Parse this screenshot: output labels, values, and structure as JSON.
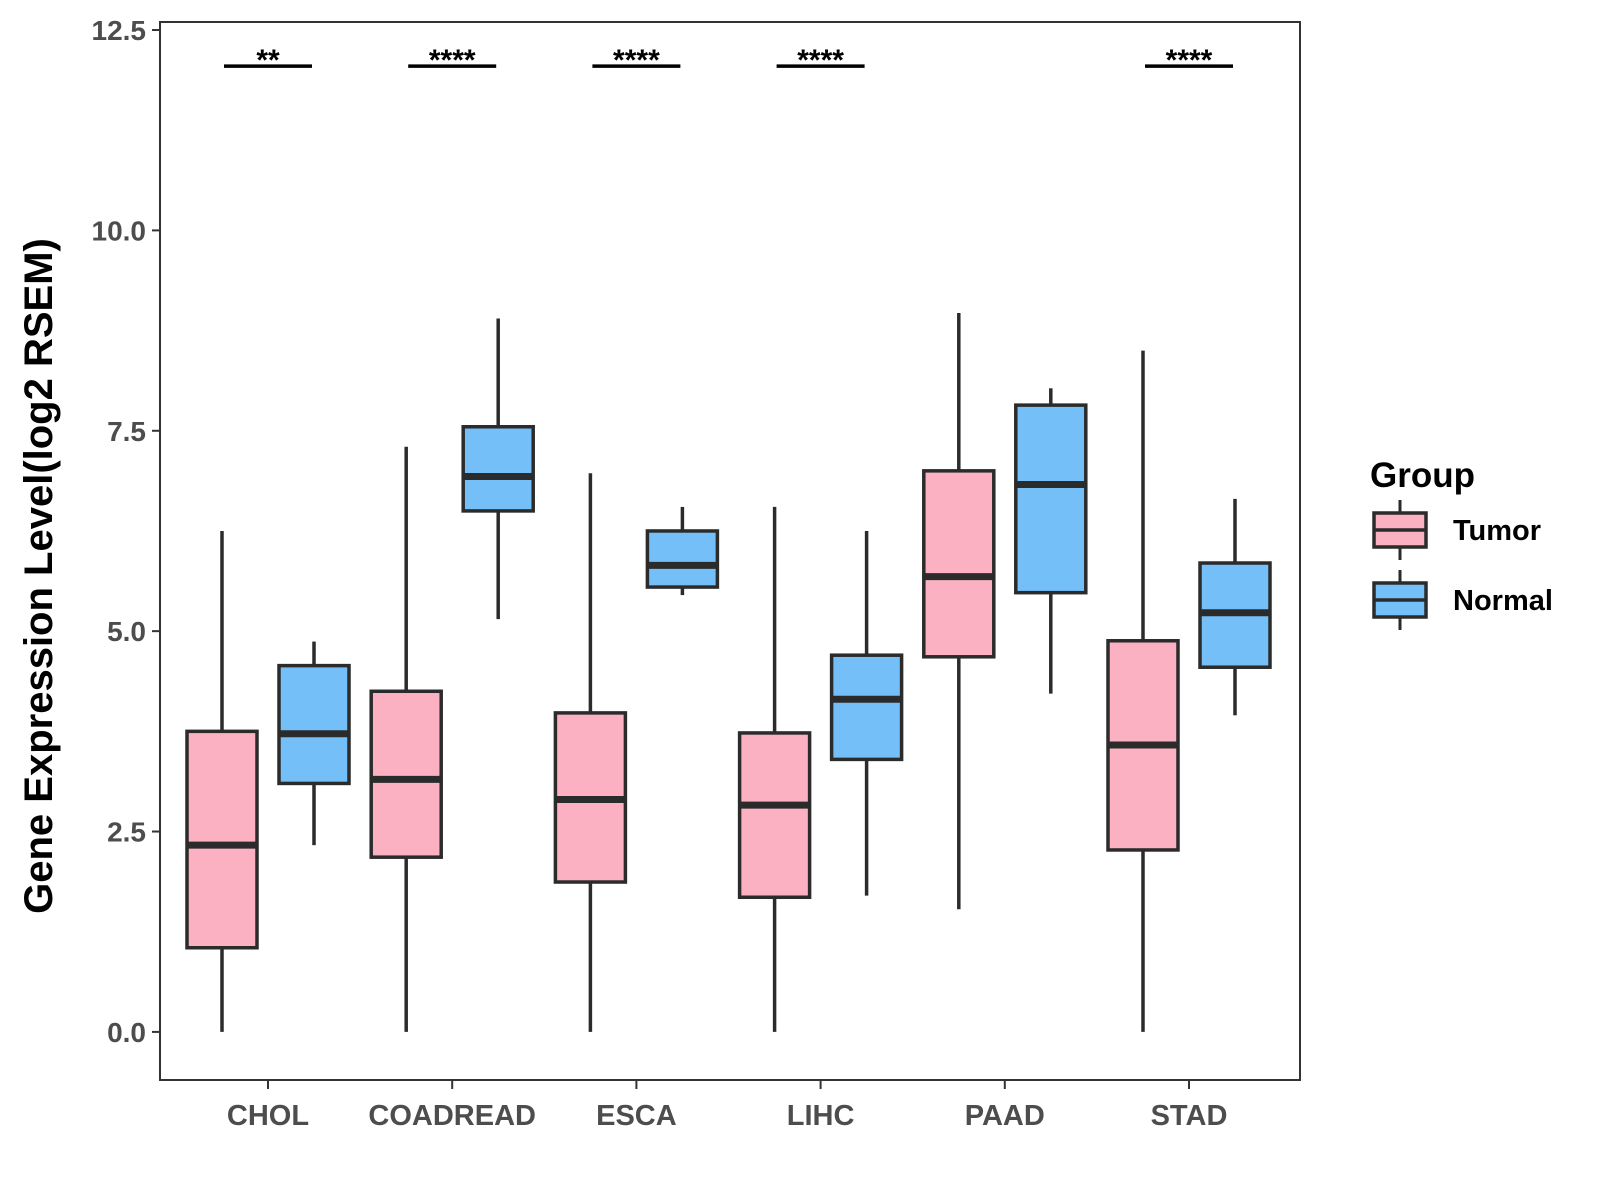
{
  "chart_data": {
    "type": "boxplot",
    "title": "",
    "xlabel": "",
    "ylabel": "Gene Expression Level(log2 RSEM)",
    "ylim": [
      -0.6,
      12.6
    ],
    "yticks": [
      0.0,
      2.5,
      5.0,
      7.5,
      10.0,
      12.5
    ],
    "ytick_labels": [
      "0.0",
      "2.5",
      "5.0",
      "7.5",
      "10.0",
      "12.5"
    ],
    "categories": [
      "CHOL",
      "COADREAD",
      "ESCA",
      "LIHC",
      "PAAD",
      "STAD"
    ],
    "legend": {
      "title": "Group",
      "position": "right"
    },
    "series": [
      {
        "name": "Tumor",
        "color": "#fbb1c2",
        "boxes": [
          {
            "whisker_low": 0.0,
            "q1": 1.05,
            "median": 2.33,
            "q3": 3.75,
            "whisker_high": 6.25
          },
          {
            "whisker_low": 0.0,
            "q1": 2.18,
            "median": 3.15,
            "q3": 4.25,
            "whisker_high": 7.3
          },
          {
            "whisker_low": 0.0,
            "q1": 1.87,
            "median": 2.9,
            "q3": 3.98,
            "whisker_high": 6.97
          },
          {
            "whisker_low": 0.0,
            "q1": 1.68,
            "median": 2.83,
            "q3": 3.73,
            "whisker_high": 6.55
          },
          {
            "whisker_low": 1.53,
            "q1": 4.68,
            "median": 5.68,
            "q3": 7.0,
            "whisker_high": 8.97
          },
          {
            "whisker_low": 0.0,
            "q1": 2.27,
            "median": 3.58,
            "q3": 4.88,
            "whisker_high": 8.5
          }
        ]
      },
      {
        "name": "Normal",
        "color": "#74bff8",
        "boxes": [
          {
            "whisker_low": 2.33,
            "q1": 3.1,
            "median": 3.72,
            "q3": 4.57,
            "whisker_high": 4.87
          },
          {
            "whisker_low": 5.15,
            "q1": 6.5,
            "median": 6.93,
            "q3": 7.55,
            "whisker_high": 8.9
          },
          {
            "whisker_low": 5.45,
            "q1": 5.55,
            "median": 5.82,
            "q3": 6.25,
            "whisker_high": 6.55
          },
          {
            "whisker_low": 1.7,
            "q1": 3.4,
            "median": 4.15,
            "q3": 4.7,
            "whisker_high": 6.25
          },
          {
            "whisker_low": 4.22,
            "q1": 5.48,
            "median": 6.83,
            "q3": 7.82,
            "whisker_high": 8.03
          },
          {
            "whisker_low": 3.95,
            "q1": 4.55,
            "median": 5.23,
            "q3": 5.85,
            "whisker_high": 6.65
          }
        ]
      }
    ],
    "significance": [
      "**",
      "****",
      "****",
      "****",
      "",
      "****"
    ],
    "significance_y": 12.05
  }
}
